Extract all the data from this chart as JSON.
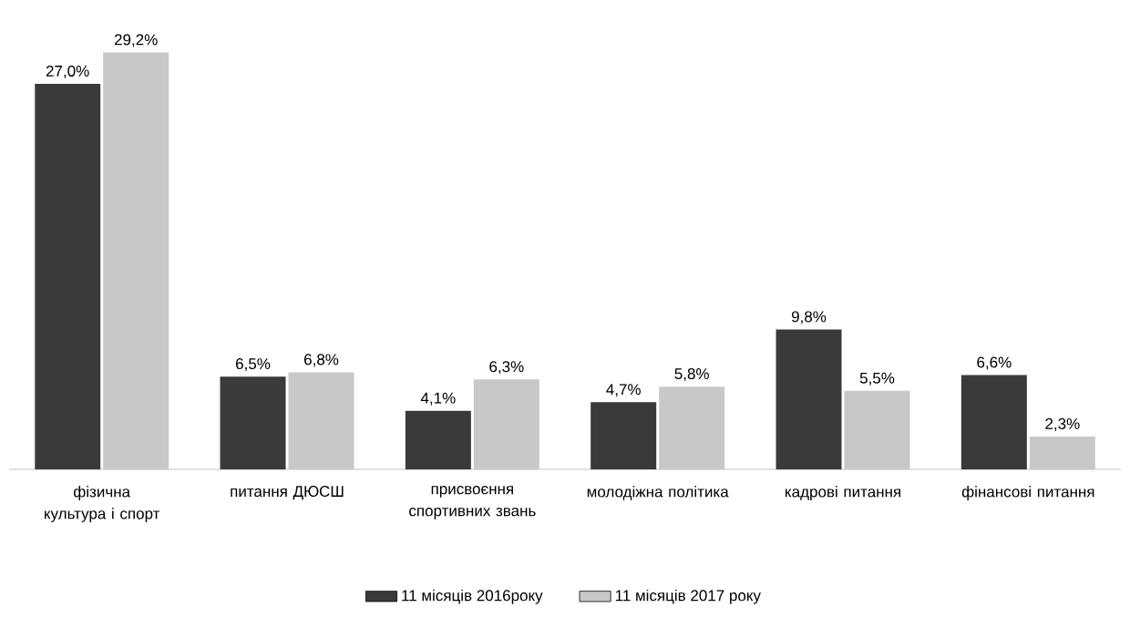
{
  "chart_data": {
    "type": "bar",
    "categories": [
      "фізична культура і спорт",
      "питання ДЮСШ",
      "присвоєння спортивних звань",
      "молодіжна політика",
      "кадрові питання",
      "фінансові питання"
    ],
    "series": [
      {
        "name": "11 місяців 2016року",
        "color": "#3a3a3a",
        "values": [
          27.0,
          6.5,
          4.1,
          4.7,
          9.8,
          6.6
        ],
        "value_labels": [
          "27,0%",
          "6,5%",
          "4,1%",
          "4,7%",
          "9,8%",
          "6,6%"
        ]
      },
      {
        "name": "11 місяців 2017 року",
        "color": "#c8c8c8",
        "values": [
          29.2,
          6.8,
          6.3,
          5.8,
          5.5,
          2.3
        ],
        "value_labels": [
          "29,2%",
          "6,8%",
          "6,3%",
          "5,8%",
          "5,5%",
          "2,3%"
        ]
      }
    ],
    "legend": "bottom"
  }
}
